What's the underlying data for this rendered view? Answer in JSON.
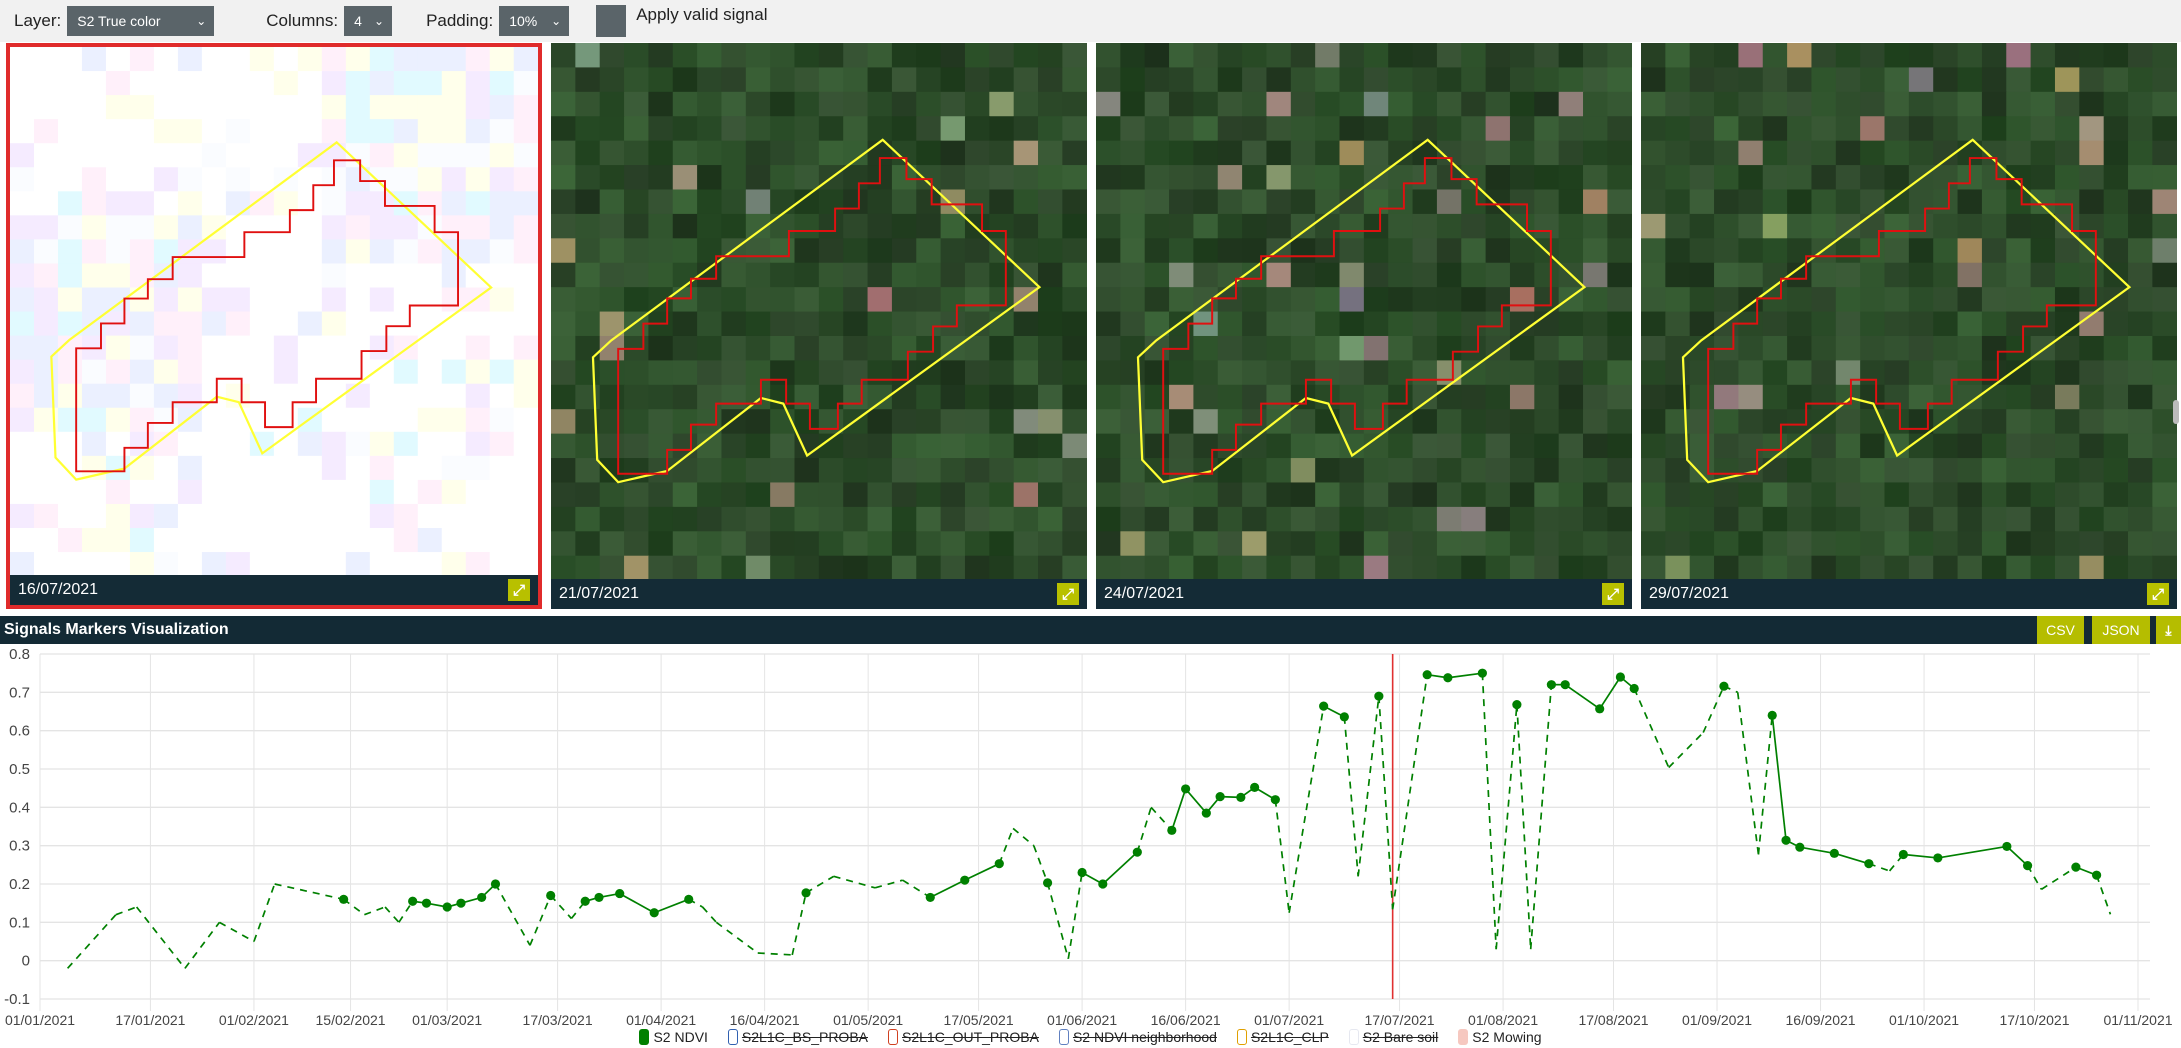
{
  "toolbar": {
    "layer_label": "Layer:",
    "layer_value": "S2 True color",
    "columns_label": "Columns:",
    "columns_value": "4",
    "padding_label": "Padding:",
    "padding_value": "10%",
    "apply_valid_label": "Apply valid signal",
    "apply_valid_checked": false
  },
  "tiles": [
    {
      "date": "16/07/2021",
      "selected": true
    },
    {
      "date": "21/07/2021",
      "selected": false
    },
    {
      "date": "24/07/2021",
      "selected": false
    },
    {
      "date": "29/07/2021",
      "selected": false
    }
  ],
  "colors": {
    "parcel_outline": "#ffff33",
    "valid_pixels": "#e01010",
    "accent": "#b5bd00",
    "header": "#132a35",
    "series": "#008000",
    "selected_date_line": "#e03030"
  },
  "chart_header": {
    "title": "Signals Markers Visualization",
    "csv_label": "CSV",
    "json_label": "JSON",
    "download_icon": "download-icon"
  },
  "chart_data": {
    "type": "line",
    "xlim": [
      "2021-01-01",
      "2021-11-01"
    ],
    "ylim": [
      -0.1,
      0.8
    ],
    "yticks": [
      "0.8",
      "0.7",
      "0.6",
      "0.5",
      "0.4",
      "0.3",
      "0.2",
      "0.1",
      "0",
      "-0.1"
    ],
    "xticks": [
      {
        "date": "2021-01-01",
        "label": "01/01/2021"
      },
      {
        "date": "2021-01-17",
        "label": "17/01/2021"
      },
      {
        "date": "2021-02-01",
        "label": "01/02/2021"
      },
      {
        "date": "2021-02-15",
        "label": "15/02/2021"
      },
      {
        "date": "2021-03-01",
        "label": "01/03/2021"
      },
      {
        "date": "2021-03-17",
        "label": "17/03/2021"
      },
      {
        "date": "2021-04-01",
        "label": "01/04/2021"
      },
      {
        "date": "2021-04-16",
        "label": "16/04/2021"
      },
      {
        "date": "2021-05-01",
        "label": "01/05/2021"
      },
      {
        "date": "2021-05-17",
        "label": "17/05/2021"
      },
      {
        "date": "2021-06-01",
        "label": "01/06/2021"
      },
      {
        "date": "2021-06-16",
        "label": "16/06/2021"
      },
      {
        "date": "2021-07-01",
        "label": "01/07/2021"
      },
      {
        "date": "2021-07-17",
        "label": "17/07/2021"
      },
      {
        "date": "2021-08-01",
        "label": "01/08/2021"
      },
      {
        "date": "2021-08-17",
        "label": "17/08/2021"
      },
      {
        "date": "2021-09-01",
        "label": "01/09/2021"
      },
      {
        "date": "2021-09-16",
        "label": "16/09/2021"
      },
      {
        "date": "2021-10-01",
        "label": "01/10/2021"
      },
      {
        "date": "2021-10-17",
        "label": "17/10/2021"
      },
      {
        "date": "2021-11-01",
        "label": "01/11/2021"
      }
    ],
    "grid": true,
    "selected_date": "2021-07-16",
    "legend_position": "bottom",
    "legend": [
      {
        "name": "S2 NDVI",
        "color": "#008000",
        "fill": true,
        "visible": true
      },
      {
        "name": "S2L1C_BS_PROBA",
        "color": "#3060b0",
        "fill": false,
        "visible": false
      },
      {
        "name": "S2L1C_OUT_PROBA",
        "color": "#d04020",
        "fill": false,
        "visible": false
      },
      {
        "name": "S2 NDVI neighborhood",
        "color": "#6080c0",
        "fill": false,
        "visible": false
      },
      {
        "name": "S2L1C_CLP",
        "color": "#e0a000",
        "fill": false,
        "visible": false
      },
      {
        "name": "S2 Bare soil",
        "color": "#e6e8f0",
        "fill": false,
        "visible": false
      },
      {
        "name": "S2 Mowing",
        "color": "#f6c8c0",
        "fill": true,
        "visible": true
      }
    ],
    "series": [
      {
        "name": "S2 NDVI",
        "points": [
          [
            "2021-01-05",
            -0.02,
            false
          ],
          [
            "2021-01-12",
            0.12,
            false
          ],
          [
            "2021-01-15",
            0.14,
            false
          ],
          [
            "2021-01-22",
            -0.02,
            false
          ],
          [
            "2021-01-27",
            0.1,
            false
          ],
          [
            "2021-02-01",
            0.05,
            false
          ],
          [
            "2021-02-04",
            0.2,
            false
          ],
          [
            "2021-02-14",
            0.16,
            true
          ],
          [
            "2021-02-17",
            0.12,
            false
          ],
          [
            "2021-02-20",
            0.14,
            false
          ],
          [
            "2021-02-22",
            0.1,
            false
          ],
          [
            "2021-02-24",
            0.155,
            true
          ],
          [
            "2021-02-26",
            0.15,
            true
          ],
          [
            "2021-03-01",
            0.14,
            true
          ],
          [
            "2021-03-03",
            0.15,
            true
          ],
          [
            "2021-03-06",
            0.165,
            true
          ],
          [
            "2021-03-08",
            0.2,
            true
          ],
          [
            "2021-03-13",
            0.04,
            false
          ],
          [
            "2021-03-16",
            0.17,
            true
          ],
          [
            "2021-03-19",
            0.11,
            false
          ],
          [
            "2021-03-21",
            0.155,
            true
          ],
          [
            "2021-03-23",
            0.165,
            true
          ],
          [
            "2021-03-26",
            0.175,
            true
          ],
          [
            "2021-03-31",
            0.125,
            true
          ],
          [
            "2021-04-05",
            0.16,
            true
          ],
          [
            "2021-04-07",
            0.14,
            false
          ],
          [
            "2021-04-09",
            0.1,
            false
          ],
          [
            "2021-04-15",
            0.02,
            false
          ],
          [
            "2021-04-20",
            0.015,
            false
          ],
          [
            "2021-04-22",
            0.177,
            true
          ],
          [
            "2021-04-26",
            0.22,
            false
          ],
          [
            "2021-05-02",
            0.19,
            false
          ],
          [
            "2021-05-06",
            0.21,
            false
          ],
          [
            "2021-05-10",
            0.165,
            true
          ],
          [
            "2021-05-15",
            0.21,
            true
          ],
          [
            "2021-05-20",
            0.253,
            true
          ],
          [
            "2021-05-22",
            0.345,
            false
          ],
          [
            "2021-05-25",
            0.3,
            false
          ],
          [
            "2021-05-27",
            0.203,
            true
          ],
          [
            "2021-05-30",
            0.005,
            false
          ],
          [
            "2021-06-01",
            0.23,
            true
          ],
          [
            "2021-06-04",
            0.2,
            true
          ],
          [
            "2021-06-09",
            0.283,
            true
          ],
          [
            "2021-06-11",
            0.4,
            false
          ],
          [
            "2021-06-14",
            0.34,
            true
          ],
          [
            "2021-06-16",
            0.448,
            true
          ],
          [
            "2021-06-19",
            0.385,
            true
          ],
          [
            "2021-06-21",
            0.428,
            true
          ],
          [
            "2021-06-24",
            0.426,
            true
          ],
          [
            "2021-06-26",
            0.452,
            true
          ],
          [
            "2021-06-29",
            0.42,
            true
          ],
          [
            "2021-07-01",
            0.125,
            false
          ],
          [
            "2021-07-06",
            0.664,
            true
          ],
          [
            "2021-07-09",
            0.636,
            true
          ],
          [
            "2021-07-11",
            0.22,
            false
          ],
          [
            "2021-07-14",
            0.69,
            true
          ],
          [
            "2021-07-16",
            0.134,
            false
          ],
          [
            "2021-07-21",
            0.746,
            true
          ],
          [
            "2021-07-24",
            0.738,
            true
          ],
          [
            "2021-07-29",
            0.75,
            true
          ],
          [
            "2021-07-31",
            0.03,
            false
          ],
          [
            "2021-08-03",
            0.668,
            true
          ],
          [
            "2021-08-05",
            0.03,
            false
          ],
          [
            "2021-08-08",
            0.72,
            true
          ],
          [
            "2021-08-10",
            0.72,
            true
          ],
          [
            "2021-08-15",
            0.657,
            true
          ],
          [
            "2021-08-18",
            0.74,
            true
          ],
          [
            "2021-08-20",
            0.71,
            true
          ],
          [
            "2021-08-25",
            0.504,
            false
          ],
          [
            "2021-08-30",
            0.595,
            false
          ],
          [
            "2021-09-02",
            0.716,
            true
          ],
          [
            "2021-09-04",
            0.7,
            false
          ],
          [
            "2021-09-07",
            0.277,
            false
          ],
          [
            "2021-09-09",
            0.64,
            true
          ],
          [
            "2021-09-11",
            0.314,
            true
          ],
          [
            "2021-09-13",
            0.296,
            true
          ],
          [
            "2021-09-18",
            0.28,
            true
          ],
          [
            "2021-09-23",
            0.253,
            true
          ],
          [
            "2021-09-26",
            0.234,
            false
          ],
          [
            "2021-09-28",
            0.277,
            true
          ],
          [
            "2021-10-03",
            0.268,
            true
          ],
          [
            "2021-10-13",
            0.298,
            true
          ],
          [
            "2021-10-16",
            0.248,
            true
          ],
          [
            "2021-10-18",
            0.186,
            false
          ],
          [
            "2021-10-23",
            0.244,
            true
          ],
          [
            "2021-10-26",
            0.223,
            true
          ],
          [
            "2021-10-28",
            0.121,
            false
          ]
        ]
      }
    ]
  }
}
